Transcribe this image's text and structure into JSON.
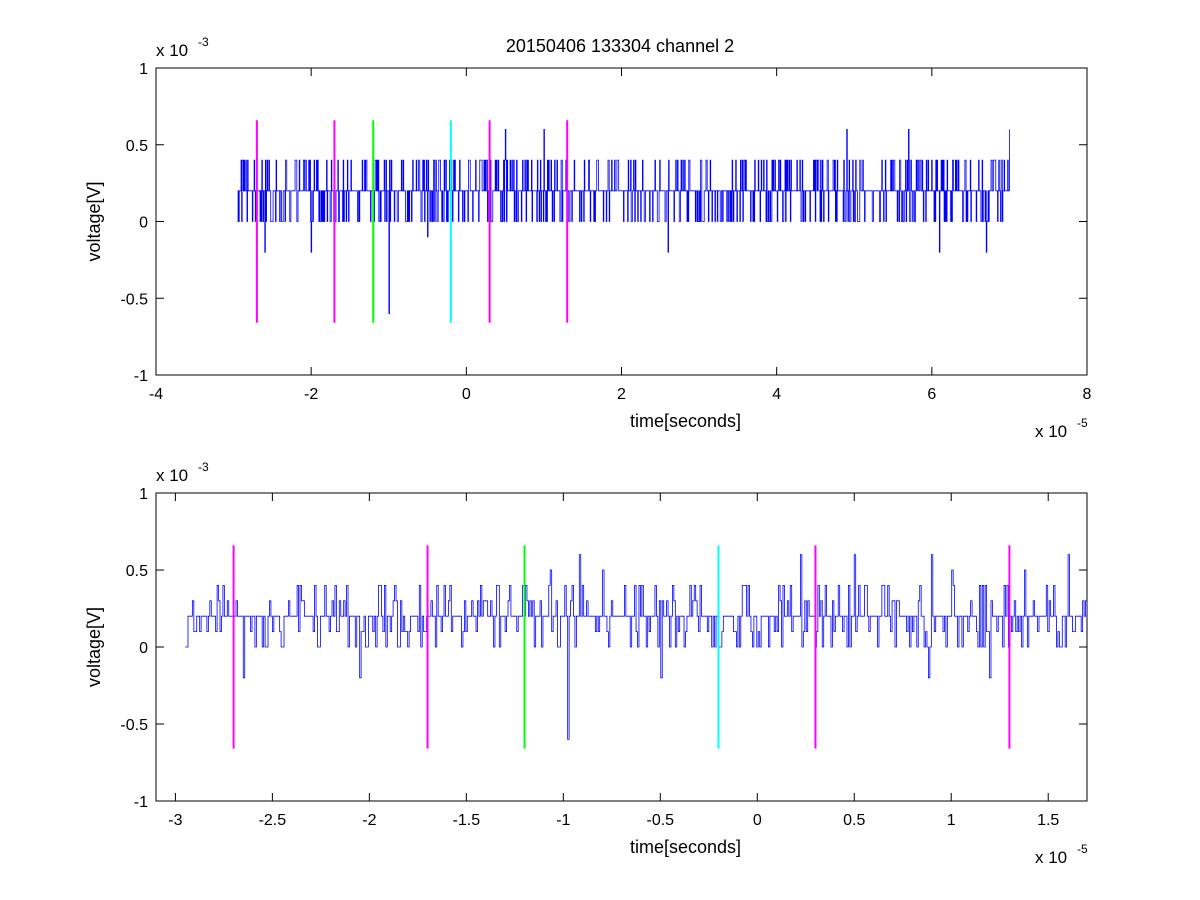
{
  "figure": {
    "title": "20150406 133304 channel 2"
  },
  "colors": {
    "trace": "#0000ff",
    "magenta_marker": "#ff00ff",
    "green_marker": "#00ff00",
    "cyan_marker": "#00ffff",
    "axes": "#000000",
    "background": "#ffffff"
  },
  "chart_data": [
    {
      "type": "line",
      "title": "20150406 133304 channel 2",
      "xlabel": "time[seconds]",
      "ylabel": "voltage[V]",
      "x_multiplier_label": "x 10",
      "x_multiplier_exponent": "-5",
      "y_multiplier_label": "x 10",
      "y_multiplier_exponent": "-3",
      "xlim": [
        -4,
        8
      ],
      "ylim": [
        -1,
        1
      ],
      "x_ticks": [
        -4,
        -2,
        0,
        2,
        4,
        6,
        8
      ],
      "x_tick_labels": [
        "-4",
        "-2",
        "0",
        "2",
        "4",
        "6",
        "8"
      ],
      "y_ticks": [
        -1,
        -0.5,
        0,
        0.5,
        1
      ],
      "y_tick_labels": [
        "-1",
        "-0.5",
        "0",
        "0.5",
        "1"
      ],
      "grid": false,
      "series": [
        {
          "color": "#0000ff",
          "x_range": [
            -2.95,
            7.0
          ],
          "baseline": 0.2,
          "levels": [
            0,
            0.2,
            0.4
          ],
          "spikes": [
            {
              "x": -2.6,
              "y": -0.2
            },
            {
              "x": -2.0,
              "y": -0.2
            },
            {
              "x": -1.0,
              "y": -0.6
            },
            {
              "x": -0.5,
              "y": -0.1
            },
            {
              "x": 0.5,
              "y": 0.6
            },
            {
              "x": 1.0,
              "y": 0.6
            },
            {
              "x": 2.6,
              "y": -0.2
            },
            {
              "x": 4.9,
              "y": 0.6
            },
            {
              "x": 6.1,
              "y": -0.2
            },
            {
              "x": 5.7,
              "y": 0.6
            },
            {
              "x": 6.7,
              "y": -0.2
            },
            {
              "x": 7.0,
              "y": 0.6
            }
          ]
        }
      ],
      "markers": [
        {
          "x": -2.7,
          "color": "#ff00ff",
          "ymin": -0.66,
          "ymax": 0.66
        },
        {
          "x": -1.7,
          "color": "#ff00ff",
          "ymin": -0.66,
          "ymax": 0.66
        },
        {
          "x": -1.2,
          "color": "#00ff00",
          "ymin": -0.66,
          "ymax": 0.66
        },
        {
          "x": -0.2,
          "color": "#00ffff",
          "ymin": -0.66,
          "ymax": 0.66
        },
        {
          "x": 0.3,
          "color": "#ff00ff",
          "ymin": -0.66,
          "ymax": 0.66
        },
        {
          "x": 1.3,
          "color": "#ff00ff",
          "ymin": -0.66,
          "ymax": 0.66
        }
      ]
    },
    {
      "type": "line",
      "title": "",
      "xlabel": "time[seconds]",
      "ylabel": "voltage[V]",
      "x_multiplier_label": "x 10",
      "x_multiplier_exponent": "-5",
      "y_multiplier_label": "x 10",
      "y_multiplier_exponent": "-3",
      "xlim": [
        -3.1,
        1.7
      ],
      "ylim": [
        -1,
        1
      ],
      "x_ticks": [
        -3,
        -2.5,
        -2,
        -1.5,
        -1,
        -0.5,
        0,
        0.5,
        1,
        1.5
      ],
      "x_tick_labels": [
        "-3",
        "-2.5",
        "-2",
        "-1.5",
        "-1",
        "-0.5",
        "0",
        "0.5",
        "1",
        "1.5"
      ],
      "y_ticks": [
        -1,
        -0.5,
        0,
        0.5,
        1
      ],
      "y_tick_labels": [
        "-1",
        "-0.5",
        "0",
        "0.5",
        "1"
      ],
      "grid": false,
      "series": [
        {
          "color": "#0000ff",
          "x_range": [
            -2.95,
            1.7
          ],
          "baseline": 0.2,
          "levels": [
            0,
            0.1,
            0.2,
            0.3,
            0.4
          ],
          "spikes": [
            {
              "x": -2.65,
              "y": -0.2
            },
            {
              "x": -2.05,
              "y": -0.2
            },
            {
              "x": -0.98,
              "y": -0.6
            },
            {
              "x": -0.92,
              "y": 0.6
            },
            {
              "x": -0.8,
              "y": 0.5
            },
            {
              "x": -0.5,
              "y": 0.6
            },
            {
              "x": -0.5,
              "y": -0.2
            },
            {
              "x": 0.22,
              "y": 0.6
            },
            {
              "x": 0.5,
              "y": 0.6
            },
            {
              "x": 0.9,
              "y": 0.6
            },
            {
              "x": 0.88,
              "y": -0.2
            },
            {
              "x": 1.2,
              "y": -0.2
            },
            {
              "x": 1.38,
              "y": 0.5
            },
            {
              "x": 1.6,
              "y": 0.6
            },
            {
              "x": -1.07,
              "y": 0.5
            },
            {
              "x": 1.0,
              "y": 0.5
            }
          ]
        }
      ],
      "markers": [
        {
          "x": -2.7,
          "color": "#ff00ff",
          "ymin": -0.66,
          "ymax": 0.66
        },
        {
          "x": -1.7,
          "color": "#ff00ff",
          "ymin": -0.66,
          "ymax": 0.66
        },
        {
          "x": -1.2,
          "color": "#00ff00",
          "ymin": -0.66,
          "ymax": 0.66
        },
        {
          "x": -0.2,
          "color": "#00ffff",
          "ymin": -0.66,
          "ymax": 0.66
        },
        {
          "x": 0.3,
          "color": "#ff00ff",
          "ymin": -0.66,
          "ymax": 0.66
        },
        {
          "x": 1.3,
          "color": "#ff00ff",
          "ymin": -0.66,
          "ymax": 0.66
        }
      ]
    }
  ]
}
